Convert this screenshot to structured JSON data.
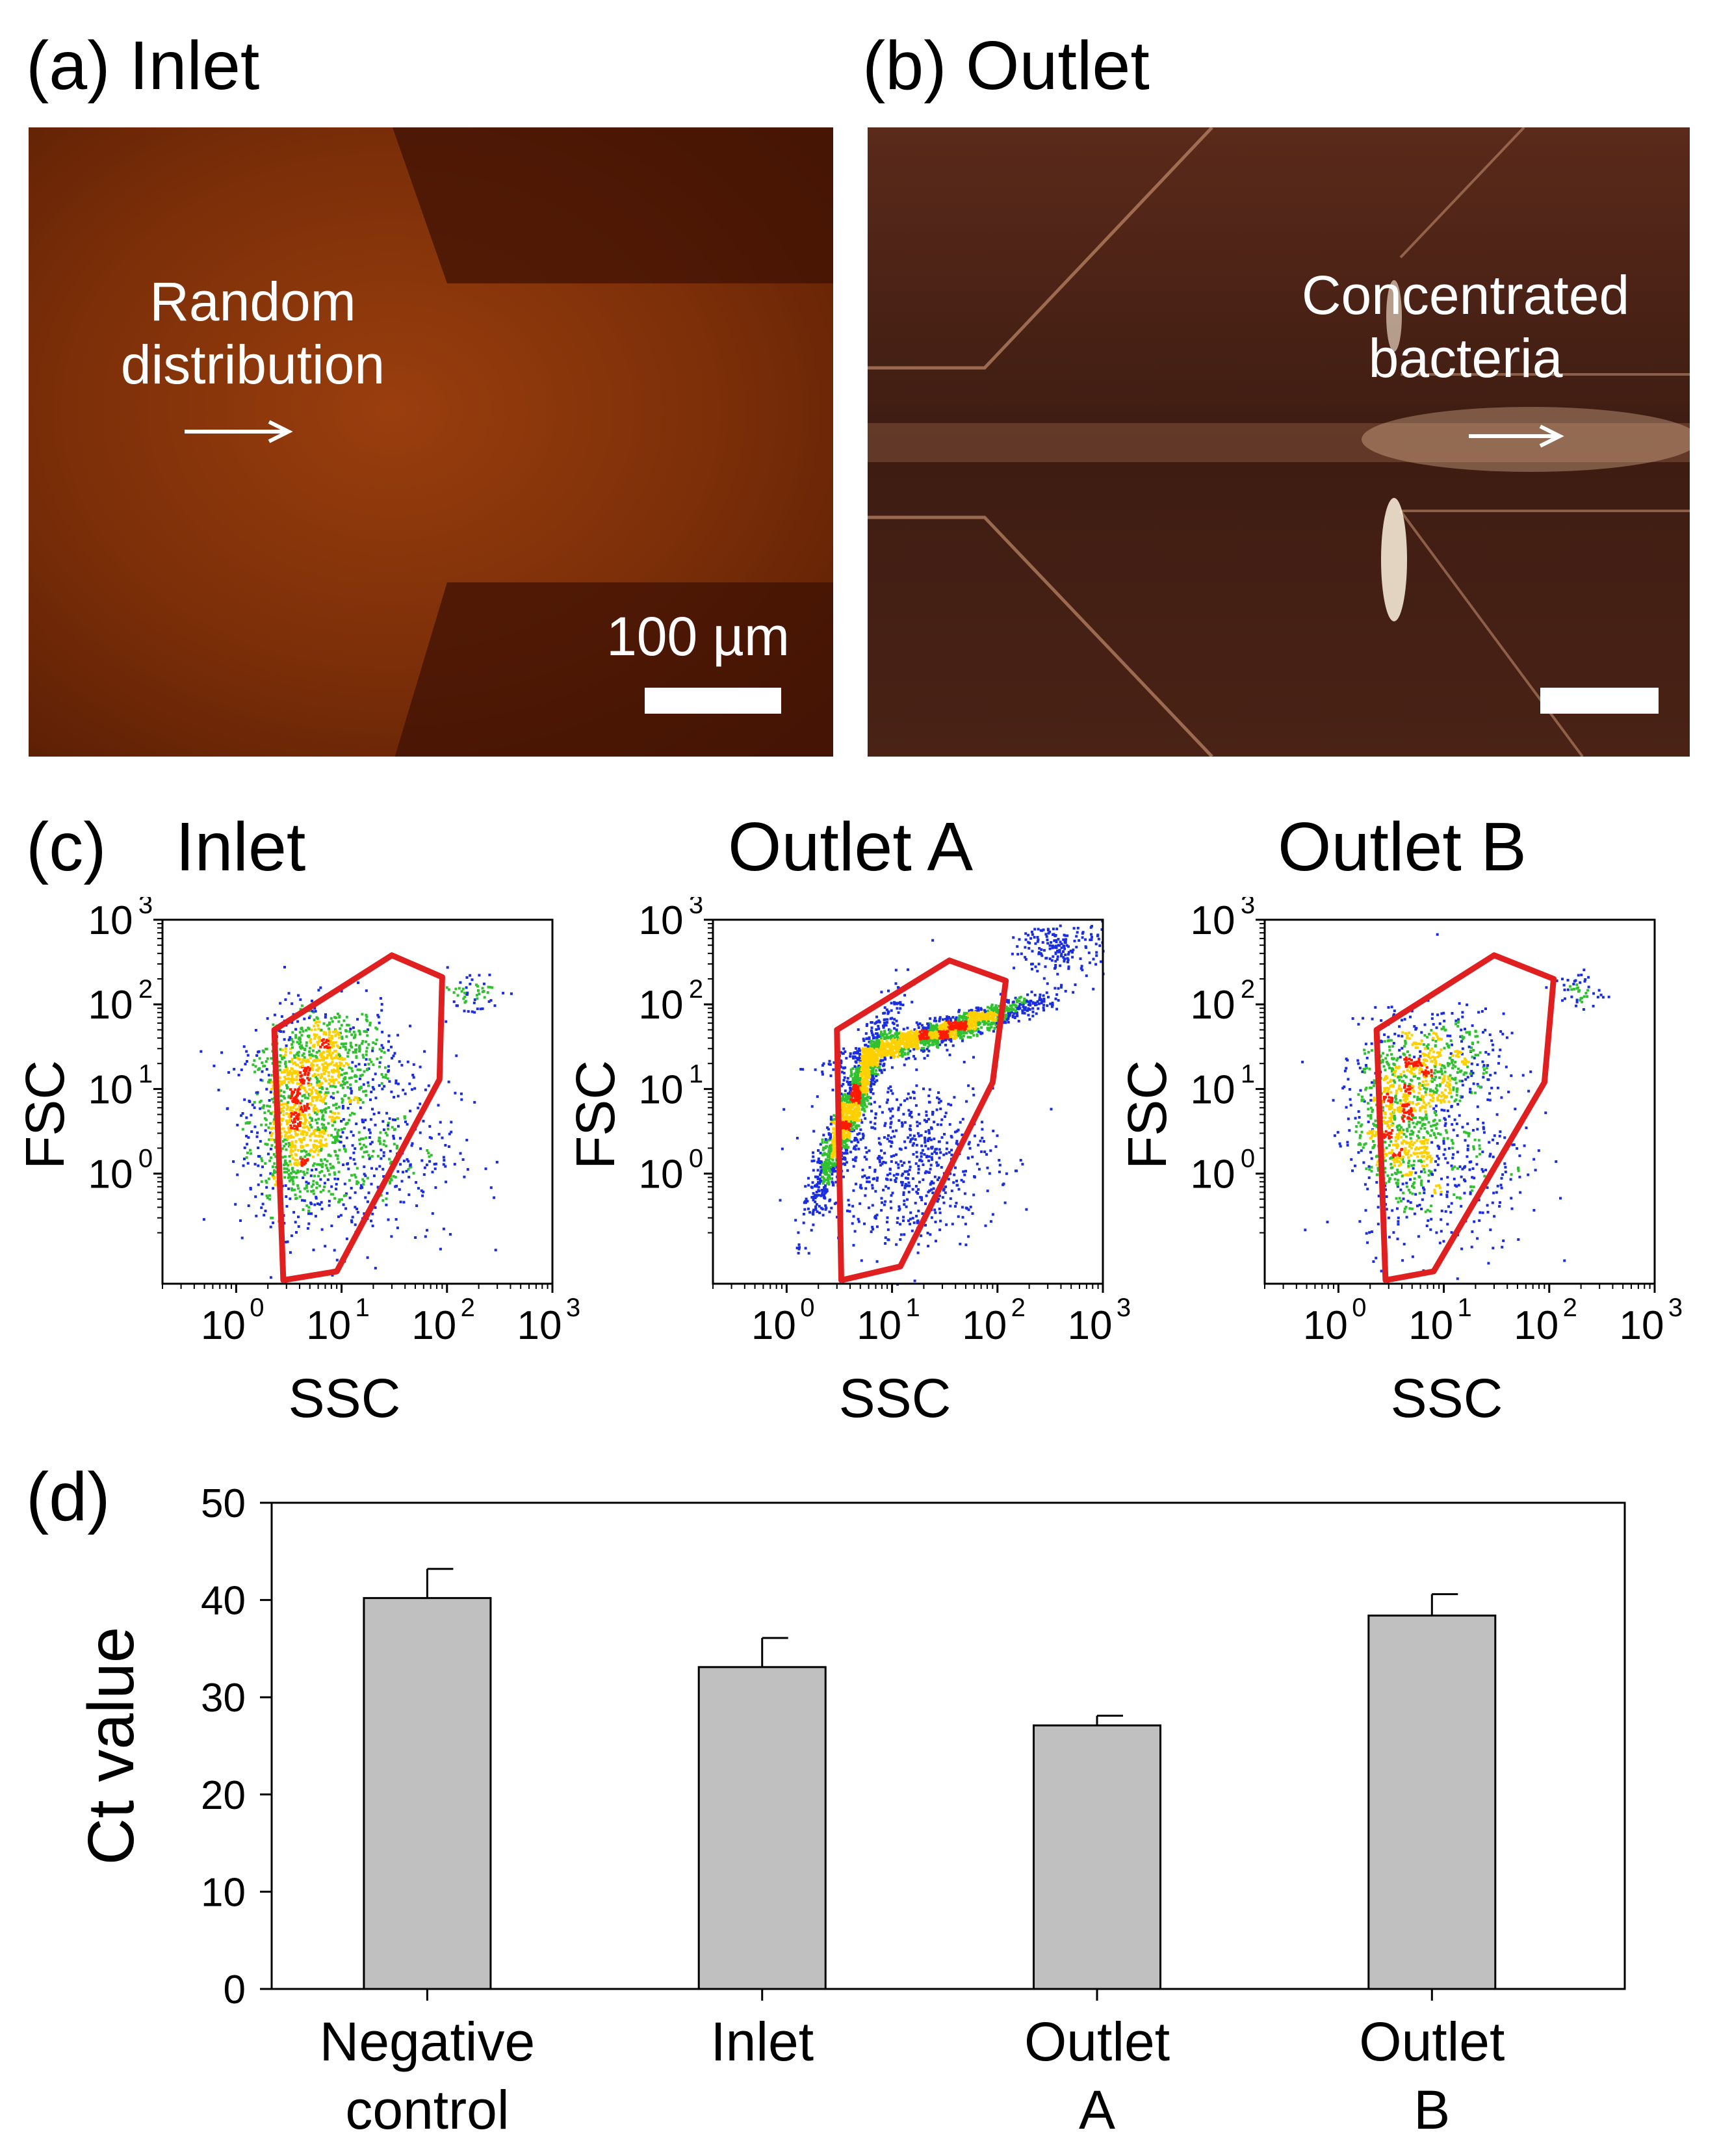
{
  "panels": {
    "a": {
      "label": "(a)",
      "title": "Inlet",
      "annotation_line1": "Random",
      "annotation_line2": "distribution",
      "scalebar_label": "100 µm"
    },
    "b": {
      "label": "(b)",
      "title": "Outlet",
      "annotation_line1": "Concentrated",
      "annotation_line2": "bacteria"
    },
    "c": {
      "label": "(c)"
    },
    "d": {
      "label": "(d)"
    }
  },
  "colors": {
    "gate": "#e02020",
    "bar_fill": "#c0c0c0",
    "density_low": "#1a2ee0",
    "density_mid": "#30c030",
    "density_high": "#ffd000",
    "density_max": "#ff1a00"
  },
  "chart_data": [
    {
      "type": "scatter",
      "title": "Inlet",
      "xlabel": "SSC",
      "ylabel": "FSC",
      "xscale": "log",
      "yscale": "log",
      "xlim": [
        0.2,
        1000
      ],
      "ylim": [
        0.05,
        1000
      ],
      "xticks": [
        {
          "base": "10",
          "exp": "0"
        },
        {
          "base": "10",
          "exp": "1"
        },
        {
          "base": "10",
          "exp": "2"
        },
        {
          "base": "10",
          "exp": "3"
        }
      ],
      "yticks": [
        {
          "base": "10",
          "exp": "0"
        },
        {
          "base": "10",
          "exp": "1"
        },
        {
          "base": "10",
          "exp": "2"
        },
        {
          "base": "10",
          "exp": "3"
        }
      ],
      "gate": [
        [
          2.3,
          50
        ],
        [
          30,
          380
        ],
        [
          90,
          210
        ],
        [
          85,
          13
        ],
        [
          9,
          0.07
        ],
        [
          2.8,
          0.055
        ]
      ],
      "populations": [
        {
          "cx": 3.5,
          "cy": 4.5,
          "sx": 0.22,
          "sy": 0.55,
          "n": 900
        },
        {
          "cx": 8,
          "cy": 25,
          "sx": 0.28,
          "sy": 0.3,
          "n": 500
        },
        {
          "cx": 15,
          "cy": 2,
          "sx": 0.45,
          "sy": 0.55,
          "n": 500
        },
        {
          "cx": 160,
          "cy": 140,
          "sx": 0.15,
          "sy": 0.14,
          "n": 60
        }
      ]
    },
    {
      "type": "scatter",
      "title": "Outlet A",
      "xlabel": "SSC",
      "ylabel": "FSC",
      "xscale": "log",
      "yscale": "log",
      "xlim": [
        0.2,
        1000
      ],
      "ylim": [
        0.05,
        1000
      ],
      "xticks": [
        {
          "base": "10",
          "exp": "0"
        },
        {
          "base": "10",
          "exp": "1"
        },
        {
          "base": "10",
          "exp": "2"
        },
        {
          "base": "10",
          "exp": "3"
        }
      ],
      "yticks": [
        {
          "base": "10",
          "exp": "0"
        },
        {
          "base": "10",
          "exp": "1"
        },
        {
          "base": "10",
          "exp": "2"
        },
        {
          "base": "10",
          "exp": "3"
        }
      ],
      "gate": [
        [
          3,
          50
        ],
        [
          35,
          330
        ],
        [
          120,
          190
        ],
        [
          90,
          12
        ],
        [
          12,
          0.08
        ],
        [
          3.3,
          0.055
        ]
      ],
      "populations": [
        {
          "cx": 4,
          "cy": 6,
          "sx": 0.18,
          "sy": 0.6,
          "n": 1500,
          "diag": true
        },
        {
          "cx": 30,
          "cy": 50,
          "sx": 0.45,
          "sy": 0.2,
          "n": 1500,
          "diag": true
        },
        {
          "cx": 15,
          "cy": 1.5,
          "sx": 0.4,
          "sy": 0.5,
          "n": 600
        },
        {
          "cx": 400,
          "cy": 500,
          "sx": 0.2,
          "sy": 0.18,
          "n": 200
        }
      ]
    },
    {
      "type": "scatter",
      "title": "Outlet B",
      "xlabel": "SSC",
      "ylabel": "FSC",
      "xscale": "log",
      "yscale": "log",
      "xlim": [
        0.2,
        1000
      ],
      "ylim": [
        0.05,
        1000
      ],
      "xticks": [
        {
          "base": "10",
          "exp": "0"
        },
        {
          "base": "10",
          "exp": "1"
        },
        {
          "base": "10",
          "exp": "2"
        },
        {
          "base": "10",
          "exp": "3"
        }
      ],
      "yticks": [
        {
          "base": "10",
          "exp": "0"
        },
        {
          "base": "10",
          "exp": "1"
        },
        {
          "base": "10",
          "exp": "2"
        },
        {
          "base": "10",
          "exp": "3"
        }
      ],
      "gate": [
        [
          2.3,
          50
        ],
        [
          30,
          380
        ],
        [
          110,
          200
        ],
        [
          90,
          12
        ],
        [
          8,
          0.07
        ],
        [
          2.8,
          0.055
        ]
      ],
      "populations": [
        {
          "cx": 3.5,
          "cy": 5,
          "sx": 0.2,
          "sy": 0.5,
          "n": 700
        },
        {
          "cx": 9,
          "cy": 20,
          "sx": 0.3,
          "sy": 0.3,
          "n": 400
        },
        {
          "cx": 10,
          "cy": 1.5,
          "sx": 0.4,
          "sy": 0.55,
          "n": 400
        },
        {
          "cx": 180,
          "cy": 150,
          "sx": 0.12,
          "sy": 0.12,
          "n": 50
        }
      ]
    },
    {
      "type": "bar",
      "title": "",
      "xlabel": "",
      "ylabel": "Ct value",
      "ylim": [
        0,
        50
      ],
      "yticks": [
        0,
        10,
        20,
        30,
        40,
        50
      ],
      "categories": [
        [
          "Negative",
          "control"
        ],
        [
          "Inlet"
        ],
        [
          "Outlet",
          "A"
        ],
        [
          "Outlet",
          "B"
        ]
      ],
      "values": [
        40.2,
        33.1,
        27.1,
        38.4
      ],
      "errors": [
        3.0,
        3.0,
        1.0,
        2.2
      ]
    }
  ]
}
